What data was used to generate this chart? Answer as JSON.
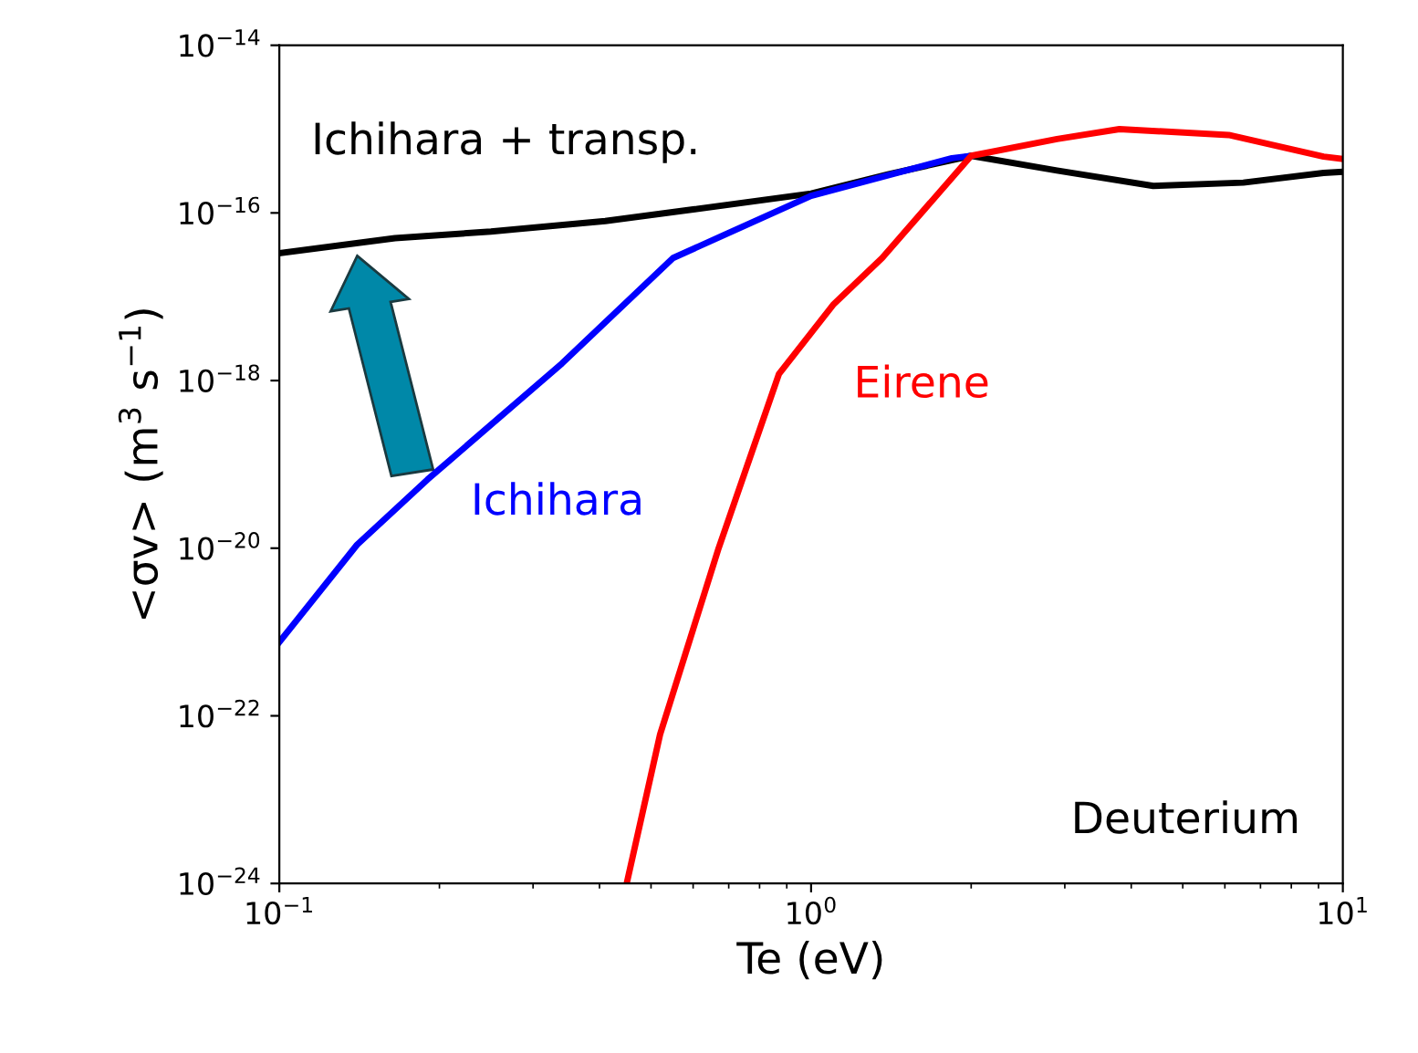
{
  "chart_data": {
    "type": "line",
    "xlabel": "Te (eV)",
    "ylabel": "<σv> (m$^{3}$ s$^{−1}$)",
    "log": "xy",
    "xlim": [
      0.1,
      10
    ],
    "xticks": [
      {
        "value": 0.1,
        "label": "10$^{−1}$"
      },
      {
        "value": 1,
        "label": "10$^{0}$"
      },
      {
        "value": 10,
        "label": "10$^{1}$"
      }
    ],
    "ylim": [
      1e-24,
      1e-14
    ],
    "yticks": [
      {
        "value": 1e-24,
        "label": "10$^{−24}$"
      },
      {
        "value": 1e-22,
        "label": "10$^{−22}$"
      },
      {
        "value": 1e-20,
        "label": "10$^{−20}$"
      },
      {
        "value": 1e-18,
        "label": "10$^{−18}$"
      },
      {
        "value": 1e-16,
        "label": "10$^{−16}$"
      },
      {
        "value": 1e-14,
        "label": "10$^{−14}$"
      }
    ],
    "grid": false,
    "legend": false,
    "marker": "none",
    "line_style": "solid",
    "series": [
      {
        "name": "Ichihara + transp.",
        "color": "#000000",
        "x": [
          0.1,
          0.165,
          0.25,
          0.41,
          0.6,
          1.0,
          1.4,
          2.0,
          2.9,
          4.4,
          6.5,
          9.2,
          10
        ],
        "values": [
          3.3e-17,
          5e-17,
          6e-17,
          8e-17,
          1.1e-16,
          1.7e-16,
          2.9e-16,
          4.8e-16,
          3.2e-16,
          2.1e-16,
          2.3e-16,
          3e-16,
          3.1e-16
        ]
      },
      {
        "name": "Ichihara",
        "color": "#0000ff",
        "x": [
          0.1,
          0.14,
          0.19,
          0.34,
          0.55,
          1.0,
          1.84,
          2.0
        ],
        "values": [
          7.6e-22,
          1.1e-20,
          6.6e-20,
          1.6e-18,
          2.9e-17,
          1.6e-16,
          4.5e-16,
          4.8e-16
        ]
      },
      {
        "name": "Eirene",
        "color": "#ff0000",
        "x": [
          0.45,
          0.52,
          0.67,
          0.87,
          1.1,
          1.36,
          2.0,
          2.9,
          3.8,
          6.1,
          9.2,
          10
        ],
        "values": [
          1e-24,
          6e-23,
          1e-20,
          1.2e-18,
          8e-18,
          2.9e-17,
          4.8e-16,
          7.6e-16,
          1e-15,
          8.5e-16,
          4.7e-16,
          4.4e-16
        ]
      }
    ],
    "annotations": [
      "Deuterium"
    ]
  }
}
